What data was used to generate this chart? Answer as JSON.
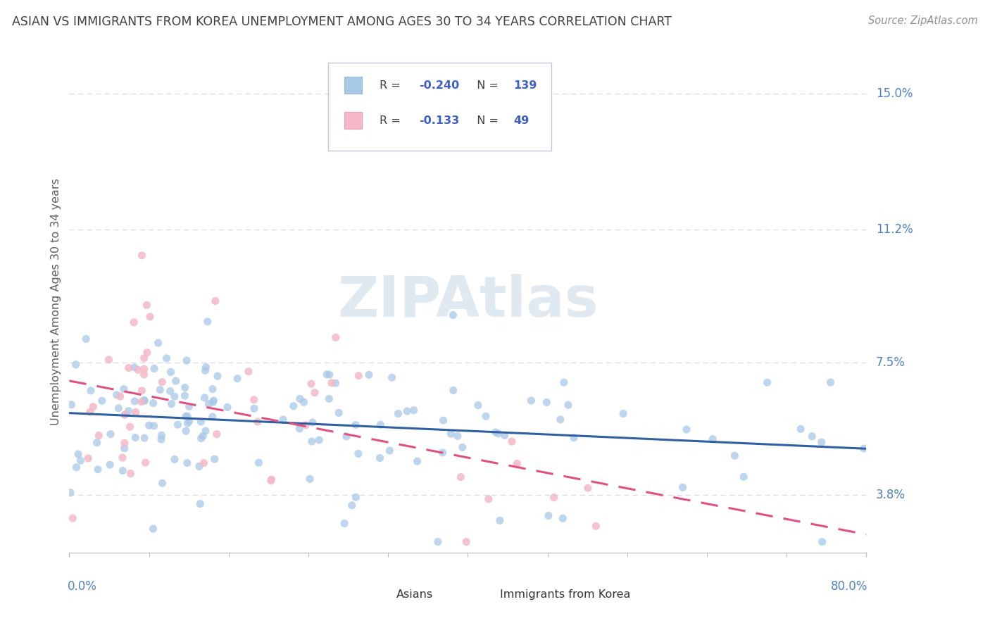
{
  "title": "ASIAN VS IMMIGRANTS FROM KOREA UNEMPLOYMENT AMONG AGES 30 TO 34 YEARS CORRELATION CHART",
  "source": "Source: ZipAtlas.com",
  "ylabel": "Unemployment Among Ages 30 to 34 years",
  "yticks": [
    3.8,
    7.5,
    11.2,
    15.0
  ],
  "xlim": [
    0.0,
    80.0
  ],
  "ylim": [
    2.2,
    16.2
  ],
  "asian_color": "#a8c8e8",
  "korea_color": "#f4b8c8",
  "trendline_asian_color": "#3060a0",
  "trendline_korea_color": "#e05080",
  "background_color": "#ffffff",
  "watermark": "ZIPAtlas",
  "watermark_color": "#e0e8f0",
  "asian_R": -0.24,
  "asian_N": 139,
  "korea_R": -0.133,
  "korea_N": 49,
  "title_color": "#404040",
  "source_color": "#909090",
  "ytick_color": "#5080c0",
  "xtick_color": "#5080c0",
  "ylabel_color": "#606060",
  "grid_color": "#d8dce8",
  "legend_text_color": "#404040",
  "legend_value_color": "#4060c0"
}
